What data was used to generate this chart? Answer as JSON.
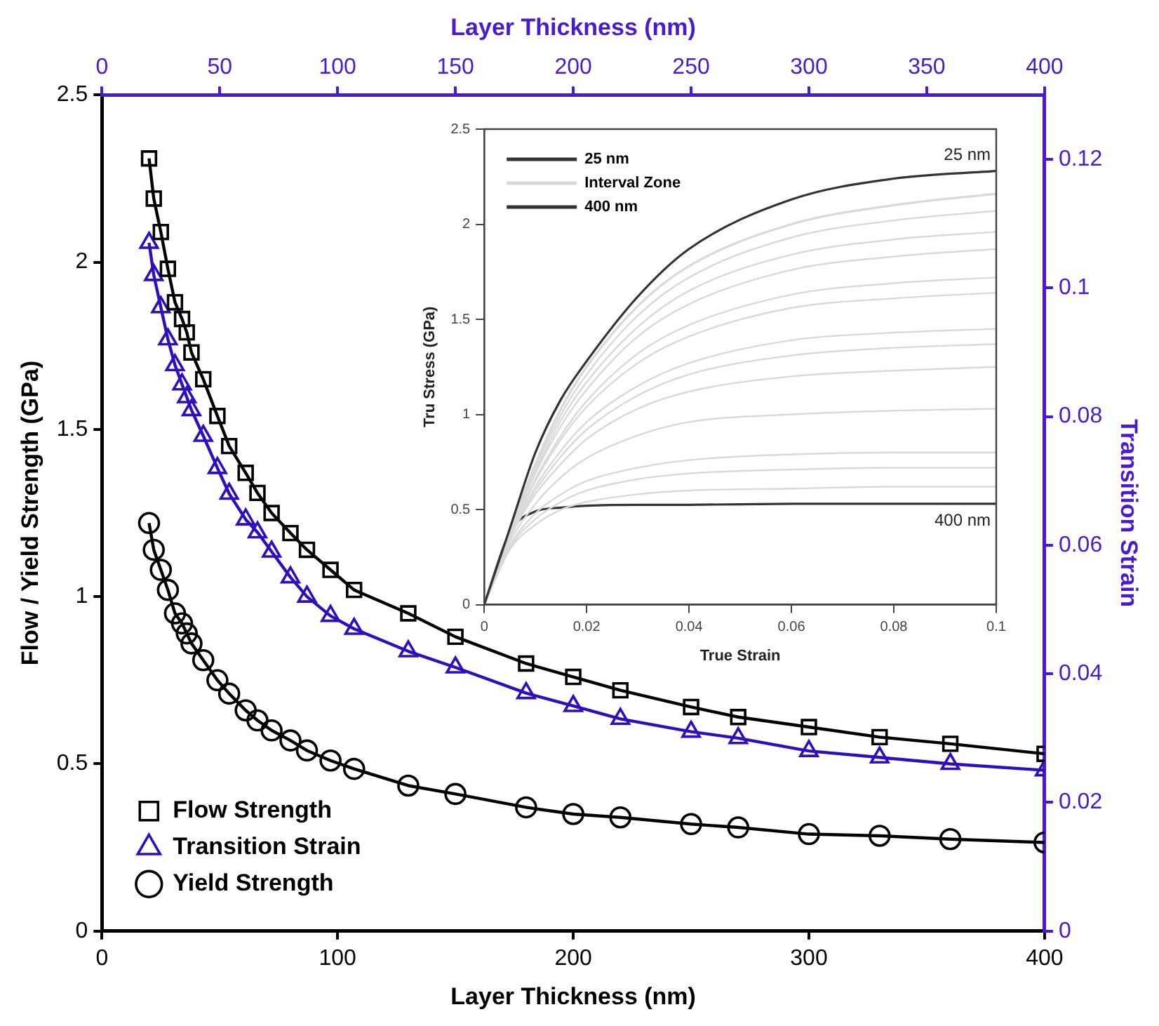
{
  "chart_data": [
    {
      "type": "line",
      "xlabel": "Layer Thickness (nm)",
      "ylabel": "Flow / Yield Strength (GPa)",
      "y2label": "Transition Strain",
      "x2label": "Layer Thickness (nm)",
      "x": [
        20,
        22,
        25,
        28,
        31,
        34,
        36,
        38,
        43,
        49,
        54,
        61,
        66,
        72,
        80,
        87,
        97,
        107,
        130,
        150,
        180,
        200,
        220,
        250,
        270,
        300,
        330,
        360,
        400
      ],
      "series": [
        {
          "name": "Flow Strength",
          "color": "#000000",
          "marker": "square",
          "values": [
            2.31,
            2.19,
            2.09,
            1.98,
            1.88,
            1.83,
            1.79,
            1.73,
            1.65,
            1.54,
            1.45,
            1.37,
            1.31,
            1.25,
            1.19,
            1.14,
            1.08,
            1.02,
            0.95,
            0.88,
            0.8,
            0.76,
            0.72,
            0.67,
            0.64,
            0.61,
            0.58,
            0.56,
            0.53
          ]
        },
        {
          "name": "Transition Strain",
          "color": "#2e0fbf",
          "marker": "triangle",
          "axis": "y2",
          "values": [
            0.107,
            0.102,
            0.097,
            0.092,
            0.088,
            0.085,
            0.083,
            0.081,
            0.077,
            0.072,
            0.068,
            0.064,
            0.062,
            0.059,
            0.055,
            0.052,
            0.049,
            0.047,
            0.0435,
            0.041,
            0.037,
            0.035,
            0.033,
            0.031,
            0.03,
            0.028,
            0.027,
            0.026,
            0.025
          ]
        },
        {
          "name": "Yield Strength",
          "color": "#000000",
          "marker": "circle",
          "values": [
            1.22,
            1.14,
            1.08,
            1.02,
            0.95,
            0.92,
            0.89,
            0.86,
            0.81,
            0.75,
            0.71,
            0.66,
            0.63,
            0.6,
            0.57,
            0.54,
            0.51,
            0.485,
            0.435,
            0.41,
            0.37,
            0.35,
            0.34,
            0.32,
            0.31,
            0.29,
            0.285,
            0.275,
            0.265
          ]
        }
      ],
      "xlim": [
        0,
        400
      ],
      "xticks": [
        0,
        100,
        200,
        300,
        400
      ],
      "ylim": [
        0,
        2.5
      ],
      "yticks": [
        0,
        0.5,
        1,
        1.5,
        2,
        2.5
      ],
      "y2lim": [
        0,
        0.13
      ],
      "y2ticks": [
        0,
        0.02,
        0.04,
        0.06,
        0.08,
        0.1,
        0.12
      ],
      "x2lim": [
        0,
        400
      ],
      "x2ticks": [
        0,
        50,
        100,
        150,
        200,
        250,
        300,
        350,
        400
      ],
      "legend": "bottom left"
    },
    {
      "type": "line",
      "xlabel": "True Strain",
      "ylabel": "Tru Stress (GPa)",
      "marker": "none",
      "x": [
        0,
        0.005,
        0.01,
        0.015,
        0.02,
        0.03,
        0.04,
        0.06,
        0.08,
        0.1
      ],
      "series": [
        {
          "name": "25 nm",
          "color": "#333333",
          "values": [
            0,
            0.4,
            0.8,
            1.08,
            1.28,
            1.62,
            1.87,
            2.13,
            2.24,
            2.28
          ]
        },
        {
          "name": "Interval Zone",
          "color": "#d9d9d9",
          "values": [
            0,
            0.39,
            0.74,
            1.03,
            1.25,
            1.57,
            1.78,
            2.0,
            2.1,
            2.16
          ]
        },
        {
          "color": "#d9d9d9",
          "values": [
            0,
            0.39,
            0.72,
            1.0,
            1.21,
            1.52,
            1.72,
            1.93,
            2.02,
            2.07
          ]
        },
        {
          "color": "#d9d9d9",
          "values": [
            0,
            0.38,
            0.7,
            0.97,
            1.17,
            1.46,
            1.65,
            1.84,
            1.92,
            1.96
          ]
        },
        {
          "color": "#d9d9d9",
          "values": [
            0,
            0.38,
            0.69,
            0.94,
            1.13,
            1.41,
            1.58,
            1.76,
            1.83,
            1.87
          ]
        },
        {
          "color": "#d9d9d9",
          "values": [
            0,
            0.37,
            0.66,
            0.89,
            1.07,
            1.32,
            1.47,
            1.63,
            1.69,
            1.72
          ]
        },
        {
          "color": "#d9d9d9",
          "values": [
            0,
            0.37,
            0.65,
            0.87,
            1.04,
            1.27,
            1.41,
            1.56,
            1.61,
            1.64
          ]
        },
        {
          "color": "#d9d9d9",
          "values": [
            0,
            0.36,
            0.62,
            0.81,
            0.96,
            1.15,
            1.27,
            1.39,
            1.43,
            1.45
          ]
        },
        {
          "color": "#d9d9d9",
          "values": [
            0,
            0.35,
            0.6,
            0.78,
            0.92,
            1.1,
            1.21,
            1.31,
            1.35,
            1.37
          ]
        },
        {
          "color": "#d9d9d9",
          "values": [
            0,
            0.35,
            0.58,
            0.74,
            0.87,
            1.03,
            1.12,
            1.2,
            1.23,
            1.25
          ]
        },
        {
          "color": "#d9d9d9",
          "values": [
            0,
            0.33,
            0.53,
            0.67,
            0.77,
            0.89,
            0.96,
            1.0,
            1.02,
            1.03
          ]
        },
        {
          "color": "#d9d9d9",
          "values": [
            0,
            0.31,
            0.48,
            0.58,
            0.65,
            0.72,
            0.76,
            0.79,
            0.8,
            0.8
          ]
        },
        {
          "color": "#d9d9d9",
          "values": [
            0,
            0.3,
            0.45,
            0.54,
            0.6,
            0.66,
            0.69,
            0.71,
            0.72,
            0.72
          ]
        },
        {
          "color": "#d9d9d9",
          "values": [
            0,
            0.29,
            0.42,
            0.5,
            0.54,
            0.58,
            0.6,
            0.61,
            0.62,
            0.62
          ]
        },
        {
          "name": "400 nm",
          "color": "#333333",
          "values": [
            0,
            0.38,
            0.49,
            0.51,
            0.52,
            0.525,
            0.525,
            0.53,
            0.53,
            0.53
          ]
        }
      ],
      "xlim": [
        0,
        0.1
      ],
      "xticks": [
        0,
        0.02,
        0.04,
        0.06,
        0.08,
        0.1
      ],
      "ylim": [
        0,
        2.5
      ],
      "yticks": [
        0,
        0.5,
        1,
        1.5,
        2,
        2.5
      ],
      "legend": "top left",
      "annotations": [
        {
          "text": "25 nm",
          "x": 0.1,
          "y": 2.28
        },
        {
          "text": "400 nm",
          "x": 0.1,
          "y": 0.53
        }
      ]
    }
  ]
}
